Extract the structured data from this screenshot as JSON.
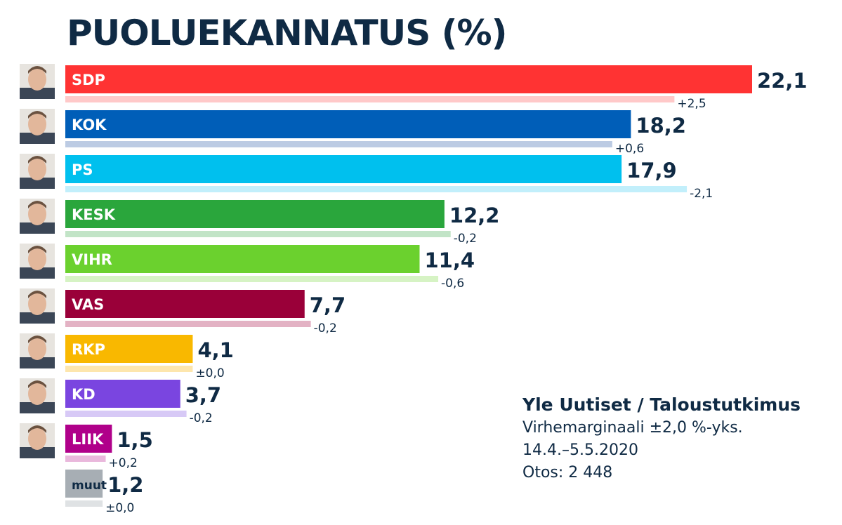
{
  "chart_data": {
    "type": "bar",
    "orientation": "horizontal",
    "title": "PUOLUEKANNATUS (%)",
    "categories": [
      "SDP",
      "KOK",
      "PS",
      "KESK",
      "VIHR",
      "VAS",
      "RKP",
      "KD",
      "LIIK",
      "muut"
    ],
    "values": [
      22.1,
      18.2,
      17.9,
      12.2,
      11.4,
      7.7,
      4.1,
      3.7,
      1.5,
      1.2
    ],
    "value_labels": [
      "22,1",
      "18,2",
      "17,9",
      "12,2",
      "11,4",
      "7,7",
      "4,1",
      "3,7",
      "1,5",
      "1,2"
    ],
    "previous_values": [
      19.6,
      17.6,
      20.0,
      12.4,
      12.0,
      7.9,
      4.1,
      3.9,
      1.3,
      1.2
    ],
    "change_labels": [
      "+2,5",
      "+0,6",
      "-2,1",
      "-0,2",
      "-0,6",
      "-0,2",
      "±0,0",
      "-0,2",
      "+0,2",
      "±0,0"
    ],
    "colors": [
      "#ff3333",
      "#005eb8",
      "#00c0ee",
      "#2aa63c",
      "#6bd12e",
      "#9a0039",
      "#f9b800",
      "#7a45e0",
      "#b0008a",
      "#a7aeb4"
    ],
    "light_colors": [
      "#ffc9c9",
      "#bccbe3",
      "#c2effb",
      "#c2e4c7",
      "#d6f3c4",
      "#e3b2c4",
      "#fde6ad",
      "#d7c9f6",
      "#e9b8dc",
      "#dfe2e4"
    ],
    "label_colors": [
      "#ffffff",
      "#ffffff",
      "#ffffff",
      "#ffffff",
      "#ffffff",
      "#ffffff",
      "#ffffff",
      "#ffffff",
      "#ffffff",
      "#0f2a44"
    ],
    "xlim": [
      0,
      22.1
    ],
    "grid": false,
    "legend": "none"
  },
  "source": {
    "name": "Yle Uutiset / Taloustutkimus",
    "margin": "Virhemarginaali ±2,0 %-yks.",
    "dates": "14.4.–5.5.2020",
    "sample": "Otos: 2 448"
  }
}
